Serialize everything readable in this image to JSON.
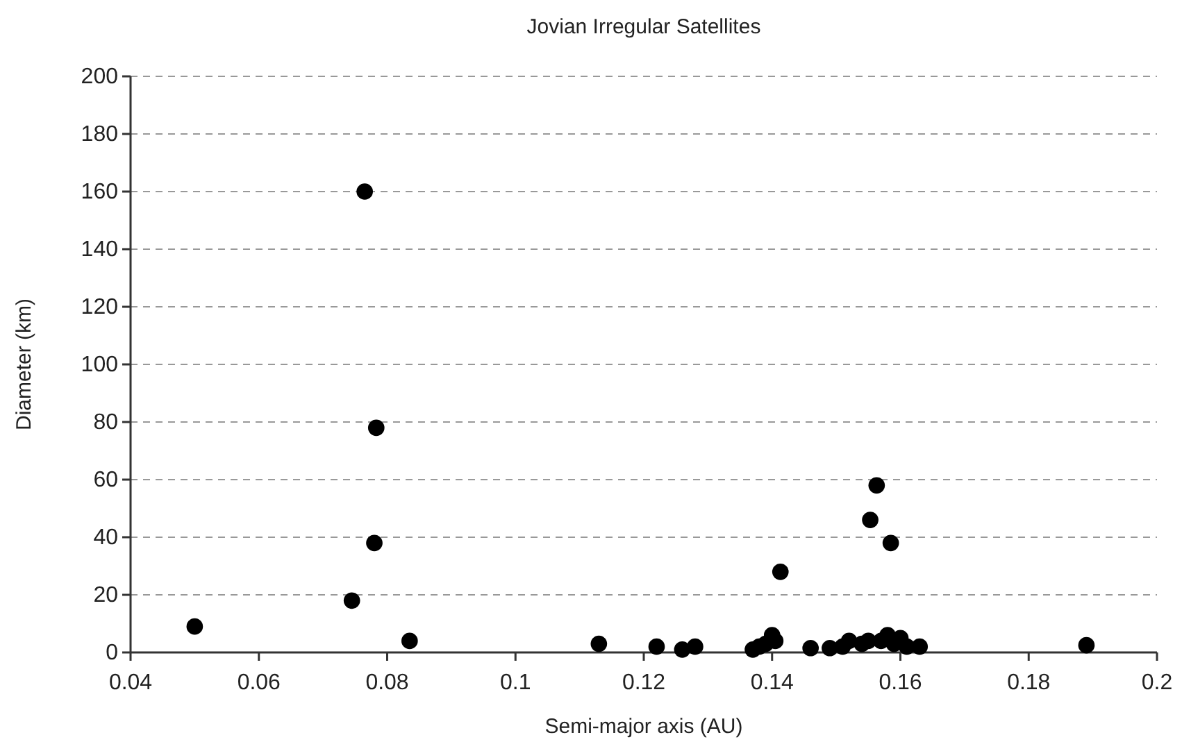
{
  "chart_data": {
    "type": "scatter",
    "title": "Jovian Irregular Satellites",
    "xlabel": "Semi-major axis (AU)",
    "ylabel": "Diameter (km)",
    "x": [
      0.05,
      0.0745,
      0.0765,
      0.078,
      0.0783,
      0.0835,
      0.113,
      0.122,
      0.126,
      0.128,
      0.137,
      0.138,
      0.139,
      0.14,
      0.1405,
      0.1413,
      0.146,
      0.149,
      0.151,
      0.152,
      0.154,
      0.155,
      0.1553,
      0.1563,
      0.157,
      0.158,
      0.1585,
      0.159,
      0.16,
      0.161,
      0.163,
      0.189
    ],
    "values": [
      9,
      18,
      160,
      38,
      78,
      4,
      3,
      2,
      1,
      2,
      1,
      2,
      3,
      6,
      4,
      28,
      1.5,
      1.5,
      2,
      4,
      3,
      4,
      46,
      58,
      4,
      6,
      38,
      3,
      5,
      2,
      2,
      2.5
    ],
    "color": "#000000",
    "marker": "circle",
    "xlim": [
      0.04,
      0.2
    ],
    "xticks": [
      0.04,
      0.06,
      0.08,
      {
        "value": 0.1,
        "label": "0.1"
      },
      0.12,
      0.14,
      0.16,
      0.18,
      {
        "value": 0.2,
        "label": "0.2"
      }
    ],
    "ylim": [
      0,
      200
    ],
    "yticks": [
      0,
      20,
      40,
      60,
      80,
      100,
      120,
      140,
      160,
      180,
      200
    ],
    "grid": "y"
  }
}
